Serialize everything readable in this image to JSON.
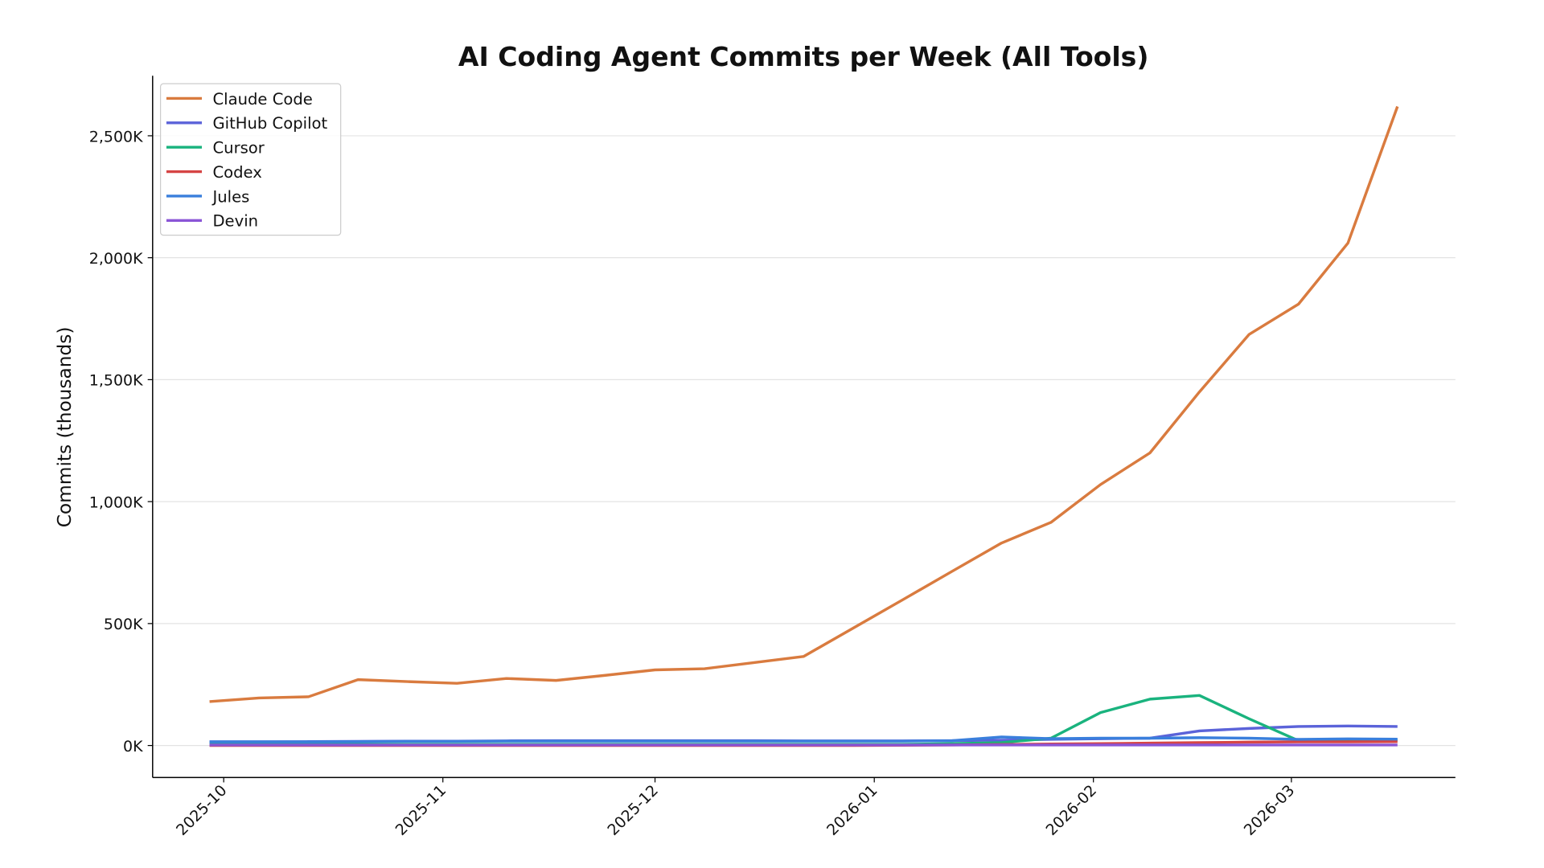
{
  "chart_data": {
    "type": "line",
    "title": "AI Coding Agent Commits per Week (All Tools)",
    "ylabel": "Commits (thousands)",
    "categories": [
      null,
      null,
      null,
      null,
      null,
      null,
      null,
      null,
      null,
      null,
      null,
      null,
      null,
      null,
      null,
      null,
      null,
      null,
      null,
      null,
      null,
      null,
      null,
      null,
      null
    ],
    "xlim": [
      -1.15,
      25.17
    ],
    "xticks": [
      {
        "value": 0.286,
        "label": "2025-10"
      },
      {
        "value": 4.714,
        "label": "2025-11"
      },
      {
        "value": 9.0,
        "label": "2025-12"
      },
      {
        "value": 13.43,
        "label": "2026-01"
      },
      {
        "value": 17.857,
        "label": "2026-02"
      },
      {
        "value": 21.857,
        "label": "2026-03"
      }
    ],
    "ylim": [
      -131,
      2746
    ],
    "yticks": [
      {
        "value": 0,
        "label": "0K"
      },
      {
        "value": 500,
        "label": "500K"
      },
      {
        "value": 1000,
        "label": "1,000K"
      },
      {
        "value": 1500,
        "label": "1,500K"
      },
      {
        "value": 2000,
        "label": "2,000K"
      },
      {
        "value": 2500,
        "label": "2,500K"
      }
    ],
    "grid": true,
    "legend": "upper-left",
    "series": [
      {
        "name": "Claude Code",
        "color": "#d97b3f",
        "values": [
          180,
          195,
          200,
          270,
          262,
          255,
          275,
          267,
          288,
          310,
          315,
          340,
          365,
          481,
          597,
          714,
          830,
          915,
          1070,
          1200,
          1450,
          1685,
          1810,
          2060,
          2620
        ]
      },
      {
        "name": "GitHub Copilot",
        "color": "#5b63d9",
        "values": [
          15,
          15,
          16,
          17,
          18,
          18,
          19,
          20,
          20,
          20,
          20,
          20,
          19,
          19,
          19,
          20,
          22,
          25,
          28,
          30,
          60,
          70,
          78,
          80,
          78
        ]
      },
      {
        "name": "Cursor",
        "color": "#1ab37e",
        "values": [
          5,
          5,
          5,
          5,
          5,
          5,
          5,
          5,
          5,
          5,
          5,
          5,
          5,
          5,
          5,
          8,
          12,
          30,
          135,
          190,
          205,
          110,
          20,
          22,
          22
        ]
      },
      {
        "name": "Codex",
        "color": "#d64545",
        "values": [
          0,
          0,
          0,
          0,
          0,
          0,
          0,
          0,
          0,
          0,
          0,
          0,
          0,
          0,
          1,
          2,
          4,
          6,
          8,
          10,
          12,
          14,
          15,
          15,
          16
        ]
      },
      {
        "name": "Jules",
        "color": "#3a7fdc",
        "values": [
          15,
          15,
          15,
          16,
          17,
          17,
          18,
          18,
          18,
          18,
          18,
          18,
          18,
          18,
          18,
          20,
          35,
          28,
          30,
          30,
          32,
          30,
          25,
          27,
          26
        ]
      },
      {
        "name": "Devin",
        "color": "#8a55d6",
        "values": [
          2,
          2,
          2,
          2,
          2,
          2,
          2,
          2,
          2,
          2,
          2,
          2,
          2,
          2,
          2,
          2,
          2,
          2,
          2,
          2,
          2,
          2,
          2,
          2,
          2
        ]
      }
    ]
  }
}
